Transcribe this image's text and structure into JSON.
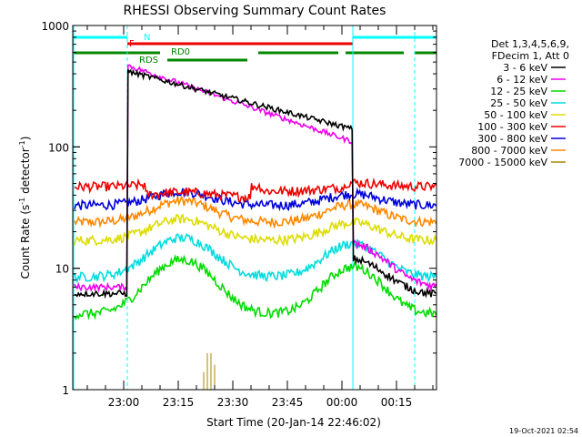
{
  "chart_data": {
    "type": "line",
    "title": "RHESSI Observing Summary Count Rates",
    "xlabel": "Start Time (20-Jan-14 22:46:02)",
    "ylabel_main": "Count Rate (s",
    "ylabel_sup1": "-1",
    "ylabel_mid": " detector",
    "ylabel_sup2": "-1",
    "ylabel_end": ")",
    "y_scale": "log",
    "ylim": [
      1,
      1000
    ],
    "xlim": [
      "22:46",
      "00:26"
    ],
    "y_ticks": [
      1,
      10,
      100,
      1000
    ],
    "x_ticks": [
      "23:00",
      "23:15",
      "23:30",
      "23:45",
      "00:00",
      "00:15"
    ],
    "timestamp": "19-Oct-2021 02:54",
    "legend_position": "right",
    "legend_header": [
      "Det 1,3,4,5,6,9,",
      "FDecim 1, Att 0"
    ],
    "series": [
      {
        "name": "3 - 6 keV",
        "color": "#000000"
      },
      {
        "name": "6 - 12 keV",
        "color": "#ee00ee"
      },
      {
        "name": "12 - 25 keV",
        "color": "#00dd00"
      },
      {
        "name": "25 - 50 keV",
        "color": "#00dddd"
      },
      {
        "name": "50 - 100 keV",
        "color": "#dddd00"
      },
      {
        "name": "100 - 300 keV",
        "color": "#ee0000"
      },
      {
        "name": "300 - 800 keV",
        "color": "#0000dd"
      },
      {
        "name": "800 - 7000 keV",
        "color": "#ff8800"
      },
      {
        "name": "7000 - 15000 keV",
        "color": "#aa8800"
      }
    ],
    "flag_labels": {
      "night": "N",
      "flare": "F",
      "rd0": "RD0",
      "rds": "RDS"
    },
    "night_color": "#00ffff",
    "flare_color": "#ee0000",
    "saa_color": "#008800"
  }
}
